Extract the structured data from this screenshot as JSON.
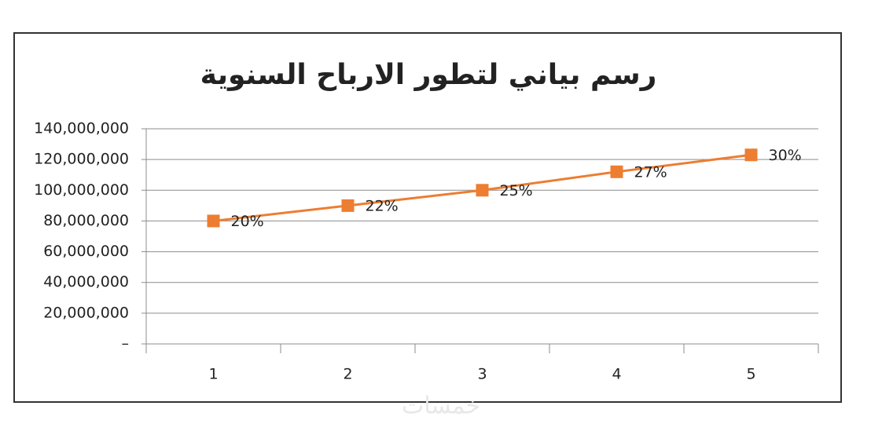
{
  "chart_data": {
    "type": "line",
    "title": "رسم بياني لتطور الارباح السنوية",
    "categories": [
      "1",
      "2",
      "3",
      "4",
      "5"
    ],
    "values": [
      80000000,
      90000000,
      100000000,
      112000000,
      123000000
    ],
    "point_labels": [
      "20%",
      "22%",
      "25%",
      "27%",
      "30%"
    ],
    "color": "#ed7d31",
    "ylim": [
      0,
      140000000
    ],
    "yticks": [
      {
        "value": 0,
        "label": "–"
      },
      {
        "value": 20000000,
        "label": "20,000,000"
      },
      {
        "value": 40000000,
        "label": "40,000,000"
      },
      {
        "value": 60000000,
        "label": "60,000,000"
      },
      {
        "value": 80000000,
        "label": "80,000,000"
      },
      {
        "value": 100000000,
        "label": "100,000,000"
      },
      {
        "value": 120000000,
        "label": "120,000,000"
      },
      {
        "value": 140000000,
        "label": "140,000,000"
      }
    ],
    "grid": true
  },
  "watermark": "خمسات"
}
